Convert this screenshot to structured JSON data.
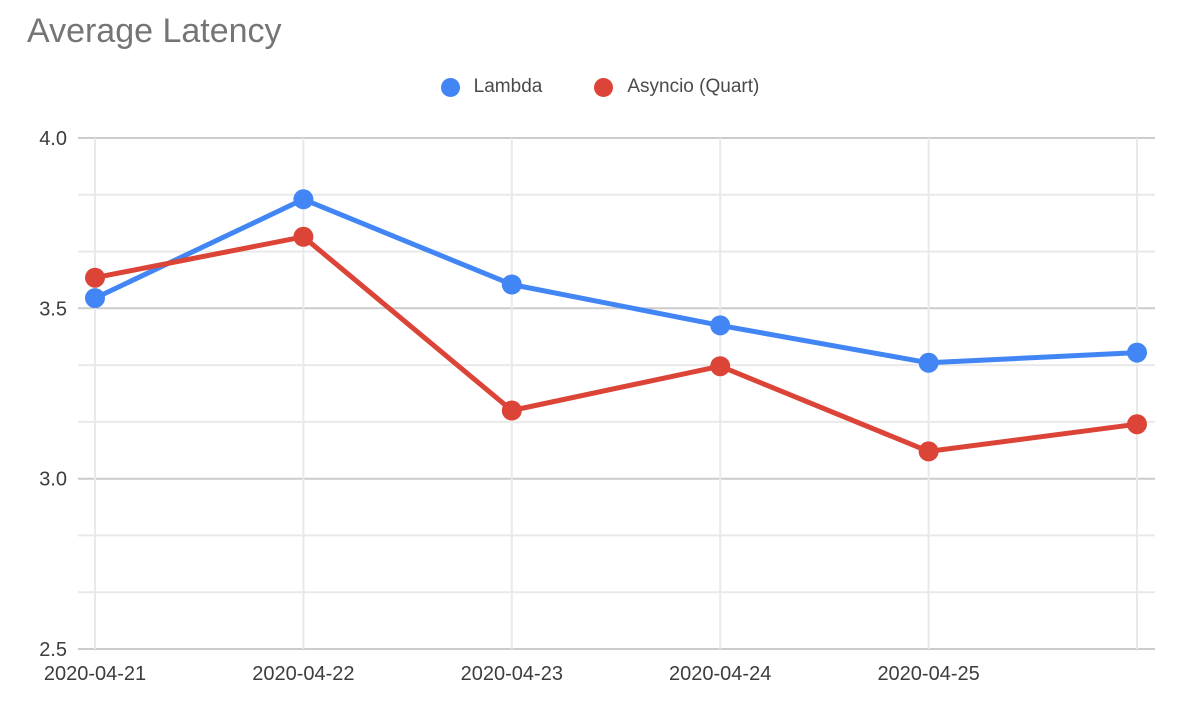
{
  "chart_data": {
    "type": "line",
    "title": "Average Latency",
    "categories": [
      "2020-04-21",
      "2020-04-22",
      "2020-04-23",
      "2020-04-24",
      "2020-04-25",
      ""
    ],
    "series": [
      {
        "name": "Lambda",
        "color": "#4285F4",
        "values": [
          3.53,
          3.82,
          3.57,
          3.45,
          3.34,
          3.37
        ]
      },
      {
        "name": "Asyncio (Quart)",
        "color": "#DB4437",
        "values": [
          3.59,
          3.71,
          3.2,
          3.33,
          3.08,
          3.16
        ]
      }
    ],
    "ylim": [
      2.5,
      4.0
    ],
    "y_tick_labels": [
      "4.0",
      "3.5",
      "3.0",
      "2.5"
    ],
    "y_major_step": 0.5,
    "y_minor_divisions_per_major": 3,
    "grid": "on",
    "legend_position": "top-center",
    "xlabel": "",
    "ylabel": "",
    "colors": {
      "title_text": "#757575",
      "axis_text": "#3d3d3d",
      "legend_text": "#4a4a4a",
      "major_gridline": "#cccccc",
      "minor_gridline": "#e9e9e9",
      "background": "#ffffff"
    }
  }
}
